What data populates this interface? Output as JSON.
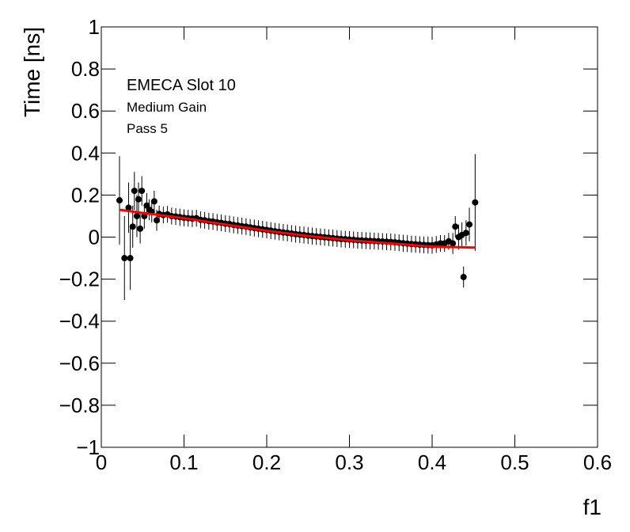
{
  "chart_data": {
    "type": "scatter",
    "xlabel": "f1",
    "ylabel": "Time [ns]",
    "annotations": [
      "EMECA Slot 10",
      "Medium Gain",
      "Pass 5"
    ],
    "xlim": [
      0,
      0.6
    ],
    "xticks": [
      0,
      0.1,
      0.2,
      0.3,
      0.4,
      0.5,
      0.6
    ],
    "ylim": [
      -1,
      1
    ],
    "yticks": [
      {
        "value": -1,
        "label": "−1"
      },
      {
        "value": -0.8,
        "label": "−0.8"
      },
      {
        "value": -0.6,
        "label": "−0.6"
      },
      {
        "value": -0.4,
        "label": "−0.4"
      },
      {
        "value": -0.2,
        "label": "−0.2"
      },
      0,
      0.2,
      0.4,
      0.6,
      0.8,
      1
    ],
    "series": [
      {
        "color": "#000000",
        "x": [
          0.022,
          0.028,
          0.033,
          0.035,
          0.038,
          0.04,
          0.043,
          0.045,
          0.047,
          0.049,
          0.052,
          0.055,
          0.058,
          0.061,
          0.064,
          0.067,
          0.07,
          0.075,
          0.08,
          0.085,
          0.09,
          0.095,
          0.1,
          0.105,
          0.11,
          0.115,
          0.12,
          0.125,
          0.13,
          0.135,
          0.14,
          0.145,
          0.15,
          0.155,
          0.16,
          0.165,
          0.17,
          0.175,
          0.18,
          0.185,
          0.19,
          0.195,
          0.2,
          0.205,
          0.21,
          0.215,
          0.22,
          0.225,
          0.23,
          0.235,
          0.24,
          0.245,
          0.25,
          0.255,
          0.26,
          0.265,
          0.27,
          0.275,
          0.28,
          0.285,
          0.29,
          0.295,
          0.3,
          0.305,
          0.31,
          0.315,
          0.32,
          0.325,
          0.33,
          0.335,
          0.34,
          0.345,
          0.35,
          0.355,
          0.36,
          0.365,
          0.37,
          0.375,
          0.38,
          0.385,
          0.39,
          0.395,
          0.4,
          0.405,
          0.41,
          0.415,
          0.42,
          0.425,
          0.428,
          0.432,
          0.436,
          0.438,
          0.441,
          0.445,
          0.452
        ],
        "values": [
          0.175,
          -0.1,
          0.14,
          -0.1,
          0.05,
          0.22,
          0.1,
          0.18,
          0.04,
          0.22,
          0.1,
          0.15,
          0.13,
          0.12,
          0.17,
          0.08,
          0.11,
          0.105,
          0.108,
          0.1,
          0.098,
          0.095,
          0.092,
          0.09,
          0.088,
          0.09,
          0.082,
          0.08,
          0.076,
          0.074,
          0.07,
          0.068,
          0.064,
          0.062,
          0.058,
          0.055,
          0.052,
          0.05,
          0.046,
          0.043,
          0.04,
          0.037,
          0.034,
          0.031,
          0.028,
          0.025,
          0.022,
          0.02,
          0.017,
          0.014,
          0.012,
          0.01,
          0.007,
          0.005,
          0.003,
          0.001,
          -0.001,
          -0.003,
          -0.005,
          -0.007,
          -0.009,
          -0.01,
          -0.012,
          -0.013,
          -0.015,
          -0.016,
          -0.017,
          -0.018,
          -0.019,
          -0.02,
          -0.021,
          -0.022,
          -0.023,
          -0.025,
          -0.027,
          -0.029,
          -0.031,
          -0.033,
          -0.034,
          -0.036,
          -0.037,
          -0.038,
          -0.039,
          -0.035,
          -0.03,
          -0.03,
          -0.02,
          -0.03,
          0.05,
          0.0,
          0.01,
          -0.19,
          0.02,
          0.06,
          0.165
        ],
        "errors": [
          0.21,
          0.2,
          0.12,
          0.15,
          0.1,
          0.09,
          0.1,
          0.08,
          0.07,
          0.07,
          0.06,
          0.06,
          0.05,
          0.05,
          0.05,
          0.05,
          0.04,
          0.04,
          0.04,
          0.04,
          0.04,
          0.04,
          0.04,
          0.04,
          0.04,
          0.04,
          0.04,
          0.04,
          0.04,
          0.04,
          0.04,
          0.04,
          0.04,
          0.04,
          0.04,
          0.04,
          0.04,
          0.04,
          0.04,
          0.04,
          0.04,
          0.04,
          0.04,
          0.04,
          0.04,
          0.04,
          0.04,
          0.04,
          0.04,
          0.04,
          0.04,
          0.04,
          0.04,
          0.04,
          0.04,
          0.04,
          0.04,
          0.04,
          0.04,
          0.04,
          0.04,
          0.04,
          0.04,
          0.04,
          0.04,
          0.04,
          0.04,
          0.04,
          0.04,
          0.04,
          0.04,
          0.04,
          0.04,
          0.04,
          0.04,
          0.04,
          0.04,
          0.04,
          0.04,
          0.04,
          0.04,
          0.04,
          0.04,
          0.04,
          0.04,
          0.04,
          0.04,
          0.05,
          0.05,
          0.06,
          0.06,
          0.05,
          0.06,
          0.08,
          0.23
        ]
      }
    ],
    "fit": {
      "color": "#ff0000",
      "x": [
        0.022,
        0.05,
        0.1,
        0.15,
        0.2,
        0.25,
        0.3,
        0.35,
        0.4,
        0.452
      ],
      "values": [
        0.13,
        0.115,
        0.09,
        0.06,
        0.03,
        0.005,
        -0.015,
        -0.03,
        -0.045,
        -0.05
      ]
    }
  }
}
